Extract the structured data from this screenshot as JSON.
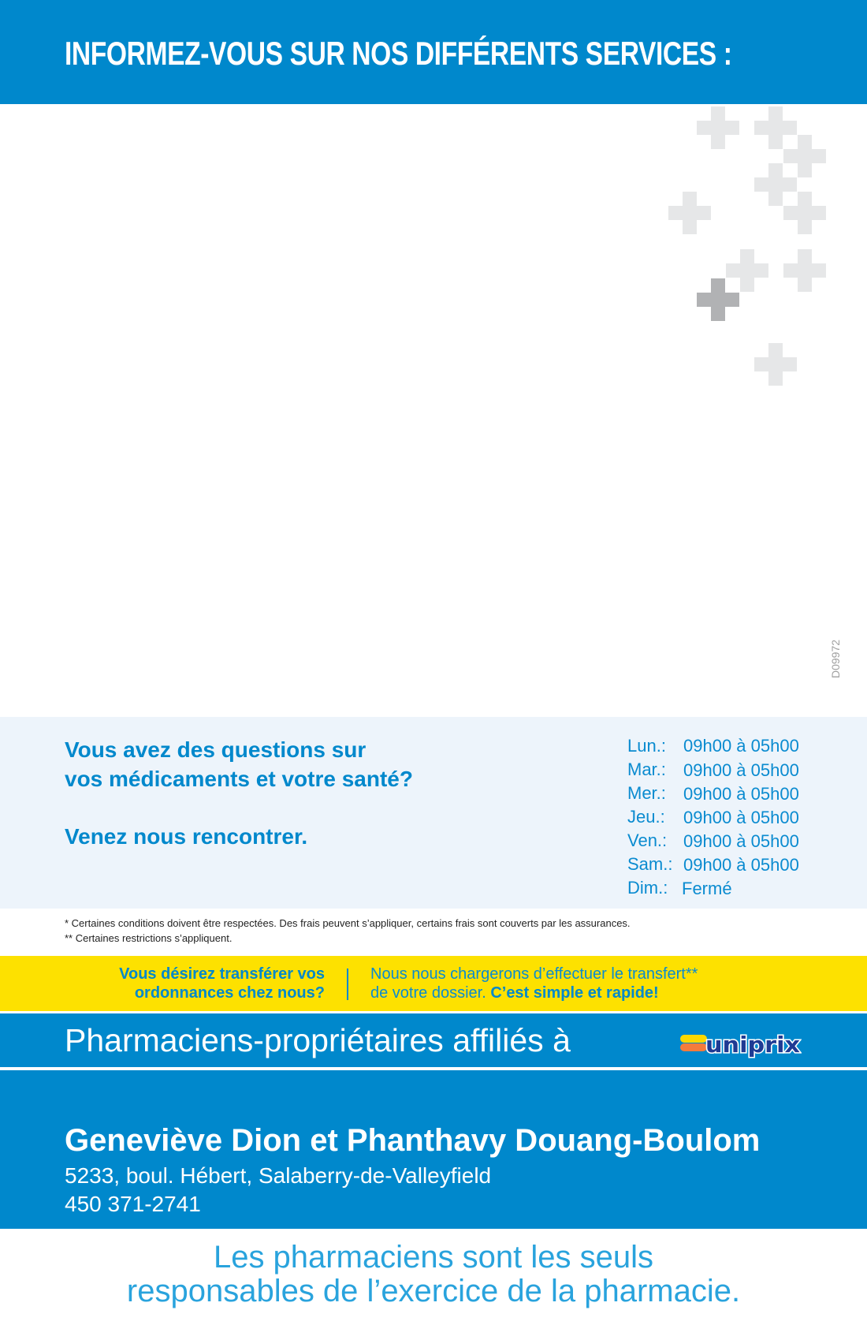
{
  "header": {
    "title": "INFORMEZ-VOUS SUR NOS DIFFÉRENTS SERVICES :"
  },
  "code": "D09972",
  "info": {
    "question_line1": "Vous avez des questions sur",
    "question_line2": "vos médicaments et votre santé?",
    "invite": "Venez nous rencontrer."
  },
  "hours": [
    {
      "day": "Lun.:",
      "time": "09h00 à 05h00"
    },
    {
      "day": "Mar.:",
      "time": "09h00 à 05h00"
    },
    {
      "day": "Mer.:",
      "time": "09h00 à 05h00"
    },
    {
      "day": "Jeu.:",
      "time": "09h00 à 05h00"
    },
    {
      "day": "Ven.:",
      "time": "09h00 à 05h00"
    },
    {
      "day": "Sam.:",
      "time": "09h00 à 05h00"
    },
    {
      "day": "Dim.:",
      "time": "Fermé"
    }
  ],
  "notes": [
    "* Certaines conditions doivent être respectées. Des frais peuvent s’appliquer, certains frais sont couverts par les assurances.",
    "** Certaines restrictions s’appliquent."
  ],
  "transfer": {
    "left_line1": "Vous désirez transférer vos",
    "left_line2": "ordonnances chez nous?",
    "right_line1": "Nous nous chargerons d’effectuer le transfert**",
    "right_line2": "de votre dossier. ",
    "right_emphasis": "C’est simple et rapide!"
  },
  "affiliation": {
    "text": "Pharmaciens-propriétaires affiliés à",
    "logo": "uniprix"
  },
  "pharmacy": {
    "owners": "Geneviève Dion et Phanthavy Douang-Boulom",
    "address": "5233, boul. Hébert, Salaberry-de-Valleyfield",
    "phone": "450 371-2741"
  },
  "footer": {
    "line1": "Les pharmaciens sont les seuls",
    "line2": "responsables de l’exercice de la pharmacie."
  },
  "colors": {
    "brand_blue": "#0088cc",
    "yellow": "#fde100",
    "light_bg": "#edf4fb",
    "logo_orange": "#f47b3c",
    "logo_yellow": "#fcd800",
    "logo_navy": "#1f3a93"
  }
}
